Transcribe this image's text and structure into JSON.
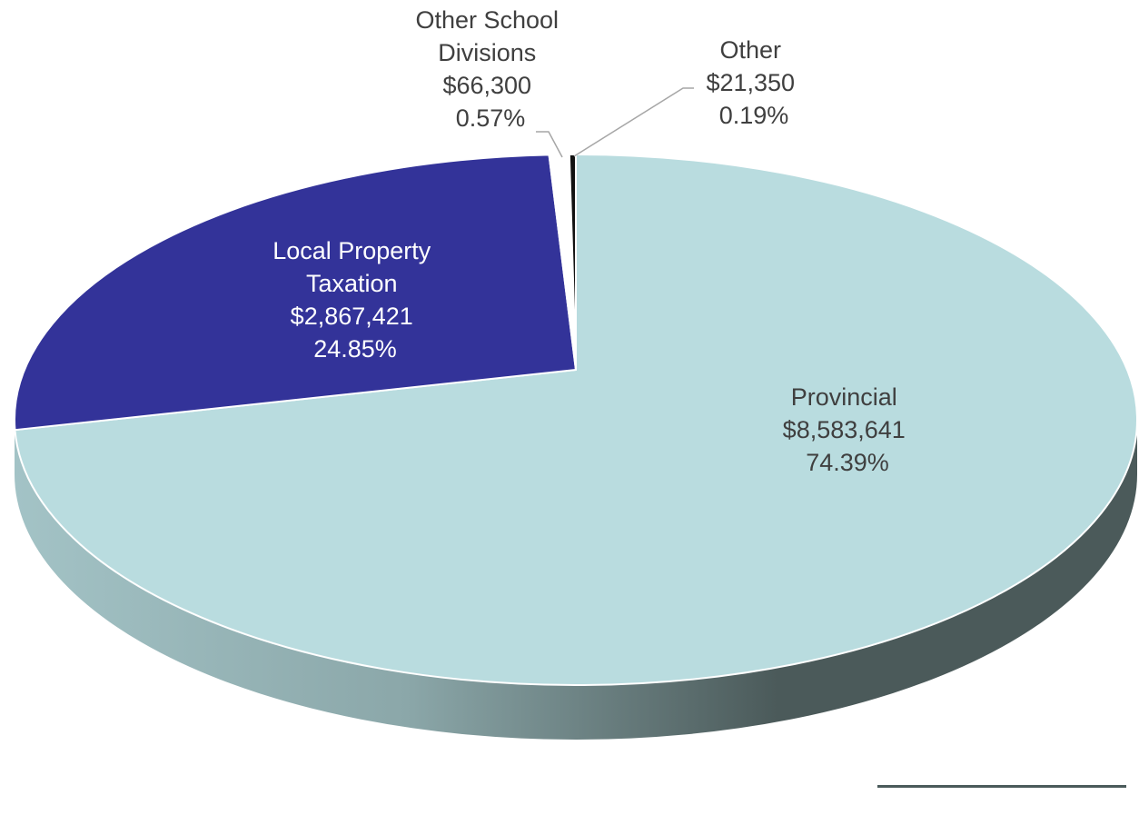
{
  "chart_data": {
    "type": "pie",
    "style": "3d",
    "title": "",
    "slices": [
      {
        "label_lines": [
          "Provincial"
        ],
        "value_text": "$8,583,641",
        "percent_text": "74.39%",
        "value": 8583641,
        "percent": 74.39,
        "color": "#b9dcdf"
      },
      {
        "label_lines": [
          "Local Property",
          "Taxation"
        ],
        "value_text": "$2,867,421",
        "percent_text": "24.85%",
        "value": 2867421,
        "percent": 24.85,
        "color": "#333399"
      },
      {
        "label_lines": [
          "Other School",
          "Divisions"
        ],
        "value_text": "$66,300",
        "percent_text": "0.57%",
        "value": 66300,
        "percent": 0.57,
        "color": "#ffffff"
      },
      {
        "label_lines": [
          "Other"
        ],
        "value_text": "$21,350",
        "percent_text": "0.19%",
        "value": 21350,
        "percent": 0.19,
        "color": "#111111"
      }
    ],
    "colors": {
      "side_light": "#a3c3c6",
      "side_dark": "#4b5a5a",
      "label_text": "#3f3f3f",
      "label_text_on_dark": "#ffffff",
      "leader_line": "#a6a6a6"
    }
  }
}
